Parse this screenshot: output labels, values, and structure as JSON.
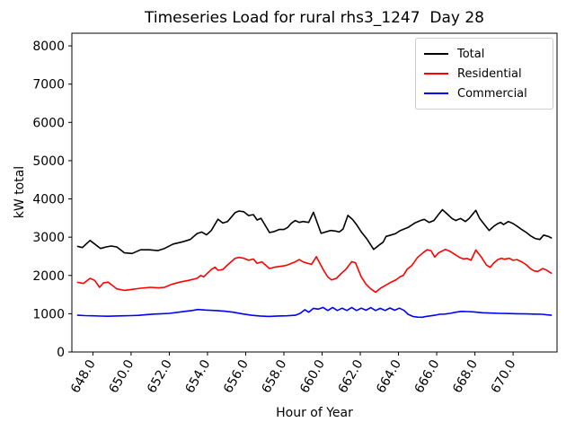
{
  "chart_data": {
    "type": "line",
    "title": "Timeseries Load for rural rhs3_1247  Day 28",
    "xlabel": "Hour of Year",
    "ylabel": "kW total",
    "xlim": [
      646.9,
      672.3
    ],
    "ylim": [
      0,
      8330
    ],
    "grid": false,
    "legend_position": "upper right",
    "xtick_values": [
      648,
      650,
      652,
      654,
      656,
      658,
      660,
      662,
      664,
      666,
      668,
      670
    ],
    "xtick_labels": [
      "648.0",
      "650.0",
      "652.0",
      "654.0",
      "656.0",
      "658.0",
      "660.0",
      "662.0",
      "664.0",
      "666.0",
      "668.0",
      "670.0"
    ],
    "ytick_values": [
      0,
      1000,
      2000,
      3000,
      4000,
      5000,
      6000,
      7000,
      8000
    ],
    "ytick_labels": [
      "0",
      "1000",
      "2000",
      "3000",
      "4000",
      "5000",
      "6000",
      "7000",
      "8000"
    ],
    "series": [
      {
        "name": "Total",
        "color": "#000000",
        "points": [
          [
            647.2,
            2760
          ],
          [
            647.45,
            2730
          ],
          [
            647.85,
            2915
          ],
          [
            648.1,
            2820
          ],
          [
            648.4,
            2705
          ],
          [
            648.7,
            2745
          ],
          [
            648.95,
            2770
          ],
          [
            649.25,
            2745
          ],
          [
            649.65,
            2590
          ],
          [
            650.05,
            2575
          ],
          [
            650.5,
            2670
          ],
          [
            650.95,
            2670
          ],
          [
            651.4,
            2650
          ],
          [
            651.75,
            2705
          ],
          [
            652.2,
            2820
          ],
          [
            652.7,
            2880
          ],
          [
            653.1,
            2940
          ],
          [
            653.45,
            3095
          ],
          [
            653.7,
            3135
          ],
          [
            653.95,
            3060
          ],
          [
            654.2,
            3175
          ],
          [
            654.55,
            3470
          ],
          [
            654.8,
            3370
          ],
          [
            655.05,
            3410
          ],
          [
            655.45,
            3645
          ],
          [
            655.65,
            3685
          ],
          [
            655.9,
            3665
          ],
          [
            656.15,
            3565
          ],
          [
            656.4,
            3590
          ],
          [
            656.6,
            3450
          ],
          [
            656.8,
            3495
          ],
          [
            657.25,
            3120
          ],
          [
            657.5,
            3150
          ],
          [
            657.75,
            3200
          ],
          [
            658.0,
            3200
          ],
          [
            658.2,
            3255
          ],
          [
            658.4,
            3370
          ],
          [
            658.6,
            3435
          ],
          [
            658.8,
            3385
          ],
          [
            659.0,
            3410
          ],
          [
            659.3,
            3385
          ],
          [
            659.55,
            3650
          ],
          [
            659.95,
            3100
          ],
          [
            660.2,
            3140
          ],
          [
            660.45,
            3175
          ],
          [
            660.7,
            3160
          ],
          [
            660.9,
            3135
          ],
          [
            661.1,
            3215
          ],
          [
            661.35,
            3570
          ],
          [
            661.6,
            3460
          ],
          [
            661.8,
            3330
          ],
          [
            662.05,
            3140
          ],
          [
            662.35,
            2950
          ],
          [
            662.7,
            2680
          ],
          [
            663.0,
            2800
          ],
          [
            663.2,
            2870
          ],
          [
            663.35,
            3020
          ],
          [
            663.6,
            3055
          ],
          [
            663.85,
            3095
          ],
          [
            664.1,
            3175
          ],
          [
            664.5,
            3255
          ],
          [
            664.85,
            3370
          ],
          [
            665.15,
            3435
          ],
          [
            665.35,
            3465
          ],
          [
            665.6,
            3385
          ],
          [
            665.85,
            3435
          ],
          [
            666.05,
            3565
          ],
          [
            666.3,
            3720
          ],
          [
            666.55,
            3605
          ],
          [
            666.8,
            3490
          ],
          [
            667.0,
            3435
          ],
          [
            667.25,
            3490
          ],
          [
            667.5,
            3410
          ],
          [
            667.7,
            3490
          ],
          [
            668.05,
            3700
          ],
          [
            668.25,
            3490
          ],
          [
            668.5,
            3330
          ],
          [
            668.75,
            3175
          ],
          [
            669.0,
            3290
          ],
          [
            669.2,
            3355
          ],
          [
            669.35,
            3385
          ],
          [
            669.5,
            3330
          ],
          [
            669.75,
            3410
          ],
          [
            670.0,
            3355
          ],
          [
            670.2,
            3290
          ],
          [
            670.45,
            3200
          ],
          [
            670.7,
            3120
          ],
          [
            670.9,
            3040
          ],
          [
            671.15,
            2965
          ],
          [
            671.4,
            2940
          ],
          [
            671.6,
            3055
          ],
          [
            671.85,
            3020
          ],
          [
            672.0,
            2980
          ]
        ]
      },
      {
        "name": "Residential",
        "color": "#ff0000",
        "points": [
          [
            647.2,
            1820
          ],
          [
            647.5,
            1790
          ],
          [
            647.85,
            1925
          ],
          [
            648.1,
            1870
          ],
          [
            648.35,
            1690
          ],
          [
            648.55,
            1805
          ],
          [
            648.8,
            1825
          ],
          [
            649.25,
            1650
          ],
          [
            649.65,
            1610
          ],
          [
            650.05,
            1635
          ],
          [
            650.5,
            1665
          ],
          [
            651.0,
            1690
          ],
          [
            651.45,
            1675
          ],
          [
            651.75,
            1690
          ],
          [
            652.1,
            1765
          ],
          [
            652.55,
            1825
          ],
          [
            653.0,
            1870
          ],
          [
            653.45,
            1925
          ],
          [
            653.65,
            2000
          ],
          [
            653.8,
            1965
          ],
          [
            654.2,
            2155
          ],
          [
            654.4,
            2215
          ],
          [
            654.55,
            2135
          ],
          [
            654.8,
            2155
          ],
          [
            655.05,
            2275
          ],
          [
            655.45,
            2450
          ],
          [
            655.65,
            2470
          ],
          [
            655.9,
            2450
          ],
          [
            656.15,
            2395
          ],
          [
            656.4,
            2430
          ],
          [
            656.6,
            2315
          ],
          [
            656.85,
            2355
          ],
          [
            657.25,
            2180
          ],
          [
            657.5,
            2215
          ],
          [
            657.75,
            2235
          ],
          [
            658.0,
            2250
          ],
          [
            658.2,
            2275
          ],
          [
            658.4,
            2315
          ],
          [
            658.6,
            2355
          ],
          [
            658.8,
            2415
          ],
          [
            659.0,
            2355
          ],
          [
            659.25,
            2315
          ],
          [
            659.45,
            2290
          ],
          [
            659.7,
            2490
          ],
          [
            660.1,
            2120
          ],
          [
            660.3,
            1960
          ],
          [
            660.5,
            1885
          ],
          [
            660.75,
            1925
          ],
          [
            661.0,
            2050
          ],
          [
            661.25,
            2160
          ],
          [
            661.55,
            2360
          ],
          [
            661.75,
            2330
          ],
          [
            662.05,
            1965
          ],
          [
            662.3,
            1770
          ],
          [
            662.55,
            1650
          ],
          [
            662.8,
            1560
          ],
          [
            663.1,
            1680
          ],
          [
            663.35,
            1750
          ],
          [
            663.6,
            1820
          ],
          [
            663.85,
            1880
          ],
          [
            664.1,
            1970
          ],
          [
            664.25,
            2000
          ],
          [
            664.45,
            2160
          ],
          [
            664.7,
            2260
          ],
          [
            665.0,
            2470
          ],
          [
            665.3,
            2600
          ],
          [
            665.5,
            2670
          ],
          [
            665.7,
            2650
          ],
          [
            665.9,
            2480
          ],
          [
            666.1,
            2590
          ],
          [
            666.45,
            2680
          ],
          [
            666.7,
            2630
          ],
          [
            666.95,
            2550
          ],
          [
            667.2,
            2470
          ],
          [
            667.4,
            2430
          ],
          [
            667.6,
            2445
          ],
          [
            667.8,
            2395
          ],
          [
            668.05,
            2665
          ],
          [
            668.35,
            2470
          ],
          [
            668.6,
            2275
          ],
          [
            668.8,
            2210
          ],
          [
            669.0,
            2330
          ],
          [
            669.2,
            2415
          ],
          [
            669.4,
            2450
          ],
          [
            669.55,
            2425
          ],
          [
            669.8,
            2450
          ],
          [
            670.0,
            2395
          ],
          [
            670.2,
            2415
          ],
          [
            670.45,
            2355
          ],
          [
            670.7,
            2275
          ],
          [
            670.9,
            2180
          ],
          [
            671.1,
            2120
          ],
          [
            671.3,
            2105
          ],
          [
            671.55,
            2180
          ],
          [
            671.7,
            2155
          ],
          [
            672.0,
            2060
          ]
        ]
      },
      {
        "name": "Commercial",
        "color": "#0000ff",
        "points": [
          [
            647.2,
            960
          ],
          [
            647.6,
            950
          ],
          [
            648.0,
            945
          ],
          [
            648.4,
            938
          ],
          [
            648.8,
            935
          ],
          [
            649.2,
            940
          ],
          [
            649.6,
            945
          ],
          [
            650.0,
            950
          ],
          [
            650.4,
            958
          ],
          [
            650.8,
            975
          ],
          [
            651.2,
            990
          ],
          [
            651.6,
            1000
          ],
          [
            652.0,
            1010
          ],
          [
            652.4,
            1035
          ],
          [
            652.8,
            1060
          ],
          [
            653.2,
            1085
          ],
          [
            653.5,
            1110
          ],
          [
            653.9,
            1095
          ],
          [
            654.4,
            1085
          ],
          [
            654.9,
            1065
          ],
          [
            655.35,
            1040
          ],
          [
            655.8,
            1000
          ],
          [
            656.3,
            960
          ],
          [
            656.75,
            940
          ],
          [
            657.2,
            930
          ],
          [
            657.7,
            940
          ],
          [
            658.15,
            945
          ],
          [
            658.6,
            960
          ],
          [
            658.85,
            1010
          ],
          [
            659.1,
            1105
          ],
          [
            659.3,
            1040
          ],
          [
            659.55,
            1140
          ],
          [
            659.8,
            1120
          ],
          [
            660.05,
            1165
          ],
          [
            660.3,
            1085
          ],
          [
            660.55,
            1165
          ],
          [
            660.8,
            1085
          ],
          [
            661.05,
            1145
          ],
          [
            661.3,
            1085
          ],
          [
            661.55,
            1165
          ],
          [
            661.8,
            1085
          ],
          [
            662.05,
            1145
          ],
          [
            662.3,
            1090
          ],
          [
            662.55,
            1160
          ],
          [
            662.8,
            1085
          ],
          [
            663.05,
            1140
          ],
          [
            663.3,
            1085
          ],
          [
            663.55,
            1150
          ],
          [
            663.8,
            1090
          ],
          [
            664.05,
            1145
          ],
          [
            664.3,
            1085
          ],
          [
            664.5,
            985
          ],
          [
            664.75,
            930
          ],
          [
            665.0,
            910
          ],
          [
            665.25,
            908
          ],
          [
            665.45,
            930
          ],
          [
            665.7,
            945
          ],
          [
            665.9,
            960
          ],
          [
            666.15,
            985
          ],
          [
            666.4,
            990
          ],
          [
            666.7,
            1010
          ],
          [
            667.0,
            1040
          ],
          [
            667.3,
            1060
          ],
          [
            667.6,
            1055
          ],
          [
            667.9,
            1050
          ],
          [
            668.4,
            1025
          ],
          [
            668.9,
            1015
          ],
          [
            669.3,
            1010
          ],
          [
            669.8,
            1005
          ],
          [
            670.2,
            1000
          ],
          [
            670.7,
            995
          ],
          [
            671.1,
            990
          ],
          [
            671.5,
            985
          ],
          [
            672.0,
            960
          ]
        ]
      }
    ]
  }
}
